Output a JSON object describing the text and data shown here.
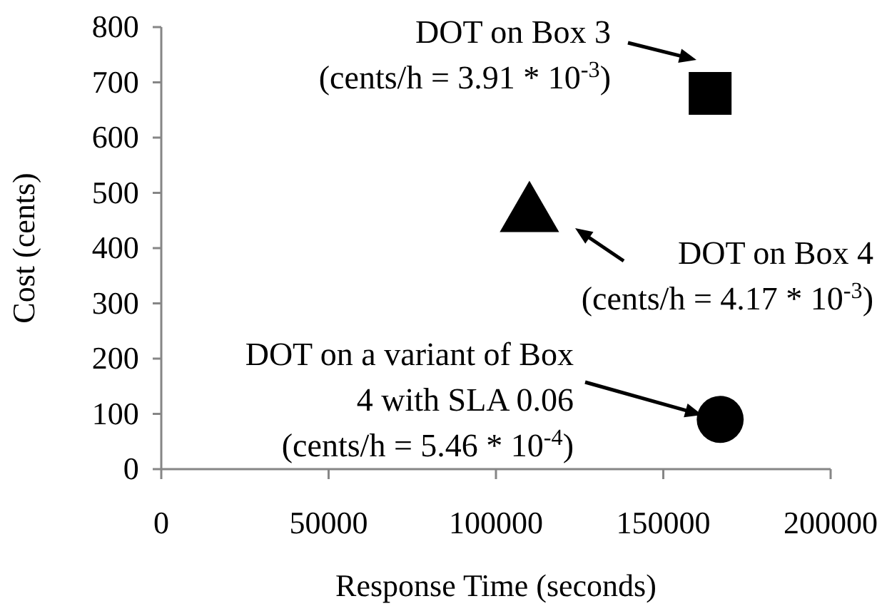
{
  "chart_data": {
    "type": "scatter",
    "xlabel": "Response Time (seconds)",
    "ylabel": "Cost (cents)",
    "xlim": [
      0,
      200000
    ],
    "xticks": [
      0,
      50000,
      100000,
      150000,
      200000
    ],
    "ylim": [
      0,
      800
    ],
    "yticks": [
      0,
      100,
      200,
      300,
      400,
      500,
      600,
      700,
      800
    ],
    "grid": false,
    "series": [
      {
        "x": [
          164000
        ],
        "values": [
          680
        ],
        "color": "#000000",
        "marker": "square"
      },
      {
        "x": [
          110000
        ],
        "values": [
          460
        ],
        "color": "#000000",
        "marker": "triangle"
      },
      {
        "x": [
          167000
        ],
        "values": [
          90
        ],
        "color": "#000000",
        "marker": "circle"
      }
    ],
    "annotations": [
      "DOT on Box 3\n(cents/h = 3.91 * 10$^{-3}$)",
      "DOT on Box 4\n(cents/h = 4.17 * 10$^{-3}$)",
      "DOT on a variant of Box\n4 with SLA 0.06\n(cents/h = 5.46 * 10$^{-4}$)"
    ]
  }
}
